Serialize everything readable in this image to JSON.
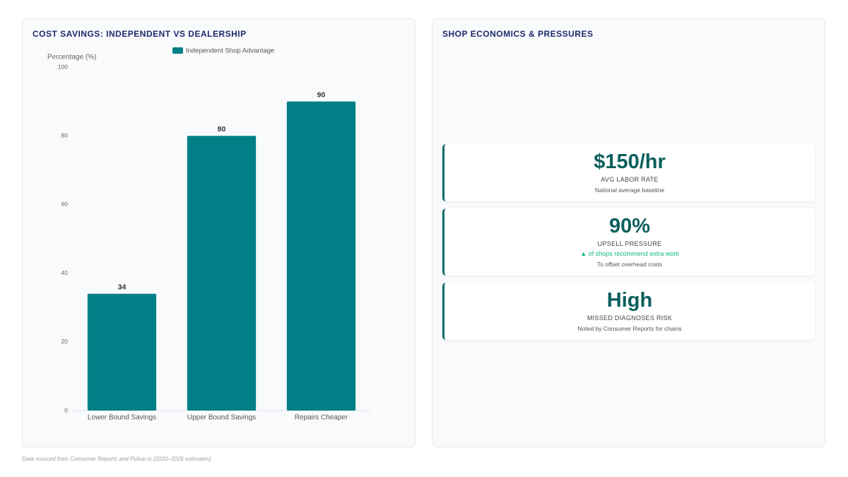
{
  "chart_data": {
    "type": "bar",
    "title": "COST SAVINGS: INDEPENDENT VS DEALERSHIP",
    "y_label": "Percentage (%)",
    "categories": [
      "Lower Bound Savings",
      "Upper Bound Savings",
      "Repairs Cheaper"
    ],
    "series": [
      {
        "name": "Independent Shop Advantage",
        "color": "#007f86",
        "values": [
          34,
          80,
          90
        ]
      }
    ],
    "ylim": [
      0,
      100
    ],
    "yticks": [
      0,
      20,
      40,
      60,
      80,
      100
    ],
    "grid": false
  },
  "panel": {
    "title": "SHOP ECONOMICS & PRESSURES",
    "cards": [
      {
        "value": "$150/hr",
        "label": "AVG LABOR RATE",
        "note": "National average baseline"
      },
      {
        "value": "90%",
        "label": "UPSELL PRESSURE",
        "trend": "▲ of shops recommend extra work",
        "note": "To offset overhead costs"
      },
      {
        "value": "High",
        "label": "MISSED DIAGNOSES RISK",
        "note": "Noted by Consumer Reports for chains"
      }
    ]
  },
  "footer": "Data sourced from Consumer Reports and Pulsar.io (2020–2026 estimates)"
}
